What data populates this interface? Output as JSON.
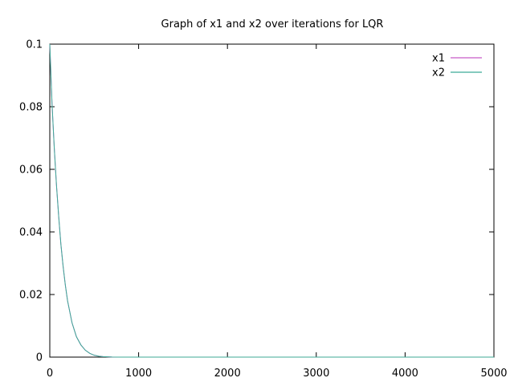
{
  "chart_data": {
    "type": "line",
    "title": "Graph of x1 and x2 over iterations for LQR",
    "xlabel": "",
    "ylabel": "",
    "xlim": [
      0,
      5000
    ],
    "ylim": [
      0,
      0.1
    ],
    "x_ticks": [
      0,
      1000,
      2000,
      3000,
      4000,
      5000
    ],
    "x_tick_labels": [
      "0",
      "1000",
      "2000",
      "3000",
      "4000",
      "5000"
    ],
    "y_ticks": [
      0,
      0.02,
      0.04,
      0.06,
      0.08,
      0.1
    ],
    "y_tick_labels": [
      "0",
      "0.02",
      "0.04",
      "0.06",
      "0.08",
      "0.1"
    ],
    "grid": false,
    "legend_position": "top-right",
    "series": [
      {
        "name": "x1",
        "color": "#c85ac8",
        "x": [
          0,
          25,
          50,
          75,
          100,
          125,
          150,
          175,
          200,
          250,
          300,
          350,
          400,
          450,
          500,
          550,
          600,
          700,
          800,
          1000,
          1500,
          2000,
          3000,
          4000,
          5000
        ],
        "y": [
          0.1,
          0.081,
          0.067,
          0.055,
          0.045,
          0.036,
          0.029,
          0.023,
          0.018,
          0.011,
          0.0065,
          0.0039,
          0.0022,
          0.0012,
          0.0006,
          0.0003,
          0.00015,
          4e-05,
          1e-05,
          0,
          0,
          0,
          0,
          0,
          0
        ]
      },
      {
        "name": "x2",
        "color": "#3caa96",
        "x": [
          0,
          25,
          50,
          75,
          100,
          125,
          150,
          175,
          200,
          250,
          300,
          350,
          400,
          450,
          500,
          550,
          600,
          700,
          800,
          1000,
          1500,
          2000,
          3000,
          4000,
          5000
        ],
        "y": [
          0.1,
          0.081,
          0.067,
          0.055,
          0.045,
          0.036,
          0.029,
          0.023,
          0.018,
          0.011,
          0.0065,
          0.0039,
          0.0022,
          0.0012,
          0.0006,
          0.0003,
          0.00015,
          4e-05,
          1e-05,
          0,
          0,
          0,
          0,
          0,
          0
        ]
      }
    ]
  }
}
